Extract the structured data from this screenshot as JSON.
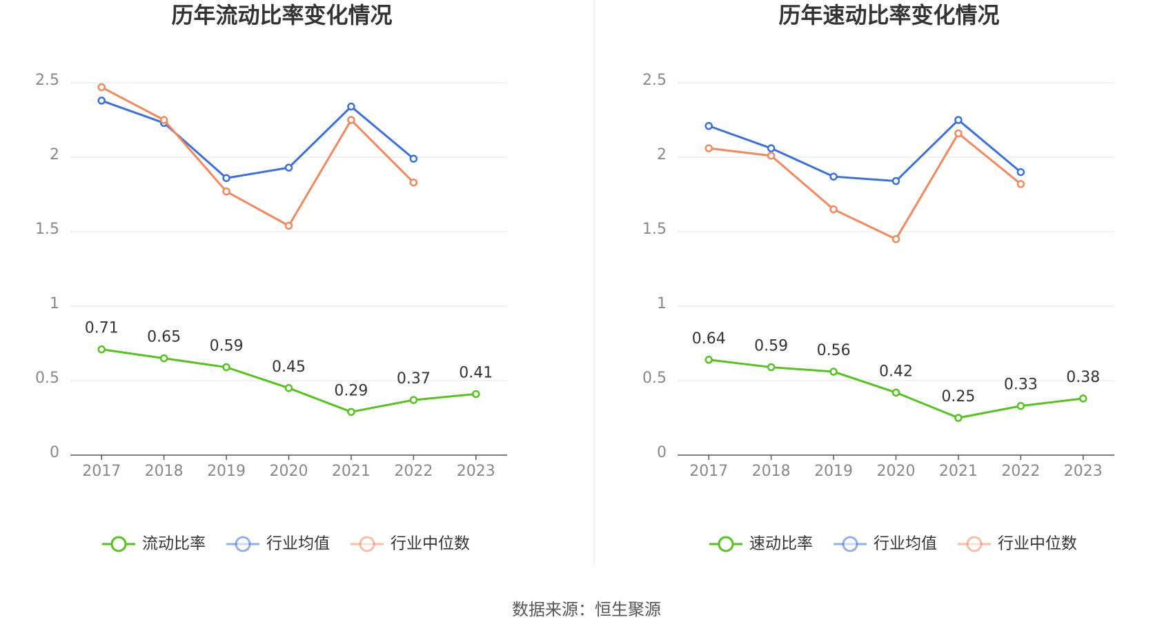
{
  "chart_data": [
    {
      "type": "line",
      "title": "历年流动比率变化情况",
      "categories": [
        "2017",
        "2018",
        "2019",
        "2020",
        "2021",
        "2022",
        "2023"
      ],
      "series": [
        {
          "name": "流动比率",
          "color": "#52c41a",
          "values": [
            0.71,
            0.65,
            0.59,
            0.45,
            0.29,
            0.37,
            0.41
          ]
        },
        {
          "name": "行业均值",
          "color": "#3a6fdf",
          "values": [
            2.38,
            2.23,
            1.86,
            1.93,
            2.34,
            1.99,
            null
          ]
        },
        {
          "name": "行业中位数",
          "color": "#f5875c",
          "values": [
            2.47,
            2.25,
            1.77,
            1.54,
            2.25,
            1.83,
            null
          ]
        }
      ],
      "ylim": [
        0,
        2.5
      ],
      "yticks": [
        0,
        0.5,
        1,
        1.5,
        2,
        2.5
      ],
      "grid": true
    },
    {
      "type": "line",
      "title": "历年速动比率变化情况",
      "categories": [
        "2017",
        "2018",
        "2019",
        "2020",
        "2021",
        "2022",
        "2023"
      ],
      "series": [
        {
          "name": "速动比率",
          "color": "#52c41a",
          "values": [
            0.64,
            0.59,
            0.56,
            0.42,
            0.25,
            0.33,
            0.38
          ]
        },
        {
          "name": "行业均值",
          "color": "#3a6fdf",
          "values": [
            2.21,
            2.06,
            1.87,
            1.84,
            2.25,
            1.9,
            null
          ]
        },
        {
          "name": "行业中位数",
          "color": "#f5875c",
          "values": [
            2.06,
            2.01,
            1.65,
            1.45,
            2.16,
            1.82,
            null
          ]
        }
      ],
      "ylim": [
        0,
        2.5
      ],
      "yticks": [
        0,
        0.5,
        1,
        1.5,
        2,
        2.5
      ],
      "grid": true
    }
  ],
  "source": "数据来源：恒生聚源"
}
